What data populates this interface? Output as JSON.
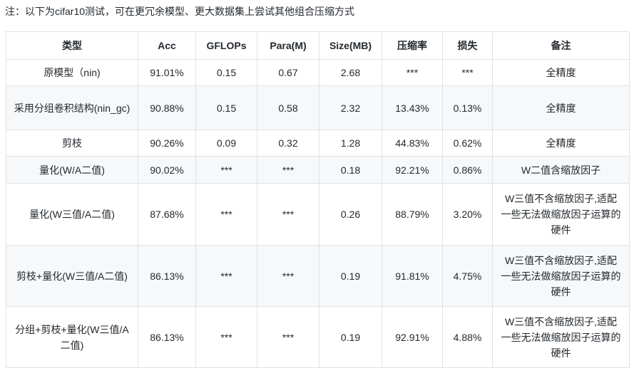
{
  "note": "注：以下为cifar10测试，可在更冗余模型、更大数据集上尝试其他组合压缩方式",
  "table": {
    "headers": [
      "类型",
      "Acc",
      "GFLOPs",
      "Para(M)",
      "Size(MB)",
      "压缩率",
      "损失",
      "备注"
    ],
    "rows": [
      [
        "原模型（nin)",
        "91.01%",
        "0.15",
        "0.67",
        "2.68",
        "***",
        "***",
        "全精度"
      ],
      [
        "采用分组卷积结构(nin_gc)",
        "90.88%",
        "0.15",
        "0.58",
        "2.32",
        "13.43%",
        "0.13%",
        "全精度"
      ],
      [
        "剪枝",
        "90.26%",
        "0.09",
        "0.32",
        "1.28",
        "44.83%",
        "0.62%",
        "全精度"
      ],
      [
        "量化(W/A二值)",
        "90.02%",
        "***",
        "***",
        "0.18",
        "92.21%",
        "0.86%",
        "W二值含缩放因子"
      ],
      [
        "量化(W三值/A二值)",
        "87.68%",
        "***",
        "***",
        "0.26",
        "88.79%",
        "3.20%",
        "W三值不含缩放因子,适配一些无法做缩放因子运算的硬件"
      ],
      [
        "剪枝+量化(W三值/A二值)",
        "86.13%",
        "***",
        "***",
        "0.19",
        "91.81%",
        "4.75%",
        "W三值不含缩放因子,适配一些无法做缩放因子运算的硬件"
      ],
      [
        "分组+剪枝+量化(W三值/A二值)",
        "86.13%",
        "***",
        "***",
        "0.19",
        "92.91%",
        "4.88%",
        "W三值不含缩放因子,适配一些无法做缩放因子运算的硬件"
      ]
    ]
  }
}
